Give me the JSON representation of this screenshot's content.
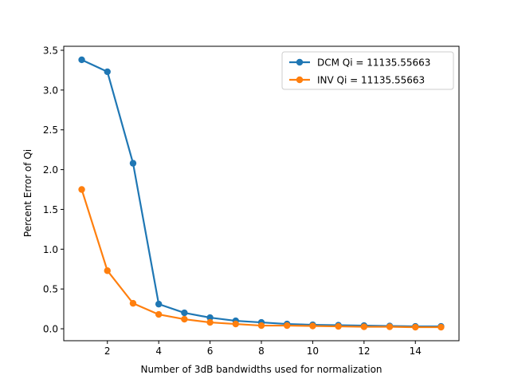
{
  "chart_data": {
    "type": "line",
    "title": "",
    "xlabel": "Number of 3dB bandwidths used for normalization",
    "ylabel": "Percent Error of Qi",
    "xlim": [
      0.3,
      15.7
    ],
    "ylim": [
      -0.15,
      3.55
    ],
    "xticks": [
      2,
      4,
      6,
      8,
      10,
      12,
      14
    ],
    "xtick_labels": [
      "2",
      "4",
      "6",
      "8",
      "10",
      "12",
      "14"
    ],
    "yticks": [
      0.0,
      0.5,
      1.0,
      1.5,
      2.0,
      2.5,
      3.0,
      3.5
    ],
    "ytick_labels": [
      "0.0",
      "0.5",
      "1.0",
      "1.5",
      "2.0",
      "2.5",
      "3.0",
      "3.5"
    ],
    "grid": false,
    "legend_position": "top-right",
    "x": [
      1,
      2,
      3,
      4,
      5,
      6,
      7,
      8,
      9,
      10,
      11,
      12,
      13,
      14,
      15
    ],
    "series": [
      {
        "name": "DCM Qi = 11135.55663",
        "color": "#1f77b4",
        "marker": "circle",
        "values": [
          3.38,
          3.23,
          2.08,
          0.31,
          0.2,
          0.14,
          0.1,
          0.08,
          0.06,
          0.05,
          0.045,
          0.04,
          0.035,
          0.03,
          0.03
        ]
      },
      {
        "name": "INV Qi = 11135.55663",
        "color": "#ff7f0e",
        "marker": "circle",
        "values": [
          1.75,
          0.73,
          0.32,
          0.18,
          0.12,
          0.08,
          0.06,
          0.04,
          0.04,
          0.035,
          0.03,
          0.025,
          0.025,
          0.02,
          0.02
        ]
      }
    ]
  }
}
